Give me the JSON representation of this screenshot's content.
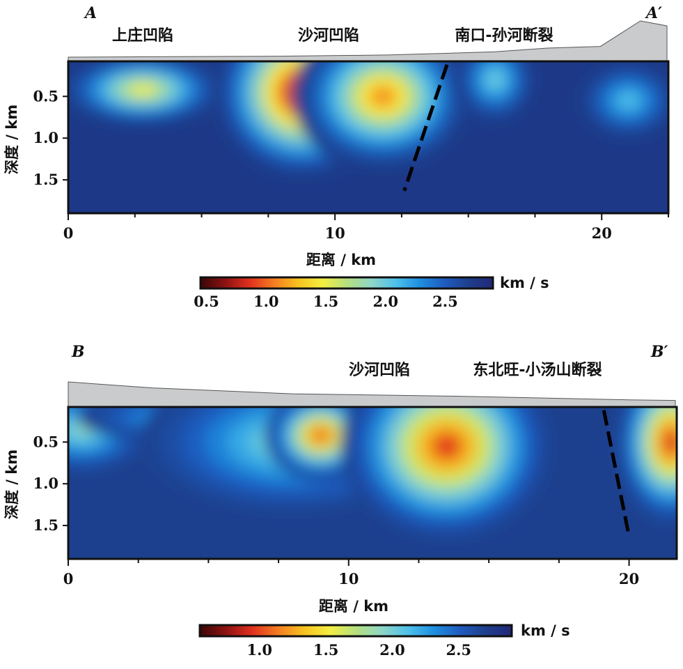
{
  "chart_data": [
    {
      "type": "heatmap",
      "profile_start": "A",
      "profile_end": "A′",
      "region_labels": [
        "上庄凹陷",
        "沙河凹陷",
        "南口-孙河断裂"
      ],
      "xlabel": "距离 / km",
      "ylabel": "深度 / km",
      "xlim": [
        0,
        22.5
      ],
      "ylim": [
        1.9,
        0.08
      ],
      "x_ticks": [
        "0",
        "10",
        "20"
      ],
      "y_ticks": [
        "0.5",
        "1.0",
        "1.5"
      ],
      "colorbar": {
        "unit": "km / s",
        "range": [
          0.45,
          2.9
        ],
        "ticks": [
          "0.5",
          "1.0",
          "1.5",
          "2.0",
          "2.5"
        ],
        "colors": [
          "#3a0606",
          "#8c1212",
          "#e0301e",
          "#f47c22",
          "#f7c21f",
          "#f4ee42",
          "#b6e07e",
          "#8fd6c6",
          "#4fc1ea",
          "#1e8fe0",
          "#1f5cbf",
          "#1e3f8c",
          "#22277a"
        ]
      },
      "background_velocity": 2.75,
      "anomalies": [
        {
          "x": 2.8,
          "z": 0.42,
          "v": 1.45,
          "sx": 3.2,
          "sz": 0.45
        },
        {
          "x": 8.8,
          "z": 0.45,
          "v": 0.55,
          "sx": 3.4,
          "sz": 1.05
        },
        {
          "x": 11.8,
          "z": 0.5,
          "v": 1.1,
          "sx": 3.4,
          "sz": 0.9
        },
        {
          "x": 16.0,
          "z": 0.3,
          "v": 1.95,
          "sx": 1.6,
          "sz": 0.55
        },
        {
          "x": 21.0,
          "z": 0.55,
          "v": 2.05,
          "sx": 2.0,
          "sz": 0.5
        }
      ],
      "fault": {
        "x": [
          14.2,
          12.6
        ],
        "z": [
          0.12,
          1.63
        ]
      },
      "topography": {
        "x": [
          0,
          4,
          8,
          12,
          16,
          18,
          20,
          21.5,
          22.5
        ],
        "elevation": [
          0,
          0.03,
          0.06,
          0.13,
          0.32,
          0.55,
          0.65,
          2.2,
          1.9
        ]
      }
    },
    {
      "type": "heatmap",
      "profile_start": "B",
      "profile_end": "B′",
      "region_labels": [
        "沙河凹陷",
        "东北旺-小汤山断裂"
      ],
      "xlabel": "距离 / km",
      "ylabel": "深度 / km",
      "xlim": [
        0,
        21.7
      ],
      "ylim": [
        1.9,
        0.08
      ],
      "x_ticks": [
        "0",
        "10",
        "20"
      ],
      "y_ticks": [
        "0.5",
        "1.0",
        "1.5"
      ],
      "colorbar": {
        "unit": "km / s",
        "range": [
          0.55,
          2.9
        ],
        "ticks": [
          "1.0",
          "1.5",
          "2.0",
          "2.5"
        ],
        "colors": [
          "#3a0606",
          "#8c1212",
          "#e0301e",
          "#f47c22",
          "#f7c21f",
          "#f4ee42",
          "#b6e07e",
          "#8fd6c6",
          "#4fc1ea",
          "#1e8fe0",
          "#1f5cbf",
          "#1e3f8c",
          "#22277a"
        ]
      },
      "background_velocity": 2.7,
      "anomalies": [
        {
          "x": 0.5,
          "z": 0.35,
          "v": 1.9,
          "sx": 2.6,
          "sz": 0.55
        },
        {
          "x": 3.5,
          "z": 0.2,
          "v": 2.2,
          "sx": 3.2,
          "sz": 0.3
        },
        {
          "x": 8.0,
          "z": 0.5,
          "v": 1.9,
          "sx": 5.5,
          "sz": 0.9
        },
        {
          "x": 9.0,
          "z": 0.42,
          "v": 1.0,
          "sx": 2.0,
          "sz": 0.55
        },
        {
          "x": 13.5,
          "z": 0.55,
          "v": 0.95,
          "sx": 3.8,
          "sz": 1.15
        },
        {
          "x": 21.5,
          "z": 0.5,
          "v": 0.9,
          "sx": 2.0,
          "sz": 1.0
        }
      ],
      "fault": {
        "x": [
          19.1,
          20.0
        ],
        "z": [
          0.12,
          1.63
        ]
      },
      "topography": {
        "x": [
          0,
          3,
          8,
          14,
          20,
          21.7
        ],
        "elevation": [
          0.7,
          0.5,
          0.3,
          0.22,
          0.1,
          0.08
        ]
      }
    }
  ]
}
